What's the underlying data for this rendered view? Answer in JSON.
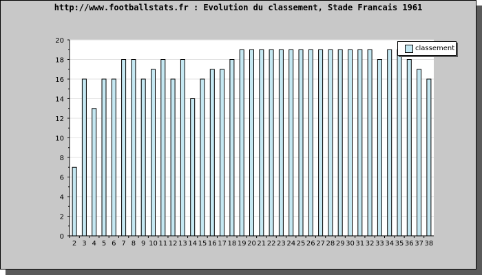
{
  "chart_data": {
    "type": "bar",
    "title": "http://www.footballstats.fr : Evolution du classement, Stade Francais 1961",
    "xlabel": "",
    "ylabel": "",
    "categories": [
      "2",
      "3",
      "4",
      "5",
      "6",
      "7",
      "8",
      "9",
      "10",
      "11",
      "12",
      "13",
      "14",
      "15",
      "16",
      "17",
      "18",
      "19",
      "20",
      "21",
      "22",
      "23",
      "24",
      "25",
      "26",
      "27",
      "28",
      "29",
      "30",
      "31",
      "32",
      "33",
      "34",
      "35",
      "36",
      "37",
      "38"
    ],
    "series": [
      {
        "name": "classement",
        "values": [
          7,
          16,
          13,
          16,
          16,
          18,
          18,
          16,
          17,
          18,
          16,
          18,
          14,
          16,
          17,
          17,
          18,
          19,
          19,
          19,
          19,
          19,
          19,
          19,
          19,
          19,
          19,
          19,
          19,
          19,
          19,
          18,
          19,
          19,
          18,
          17,
          16
        ]
      }
    ],
    "ylim": [
      0,
      20
    ],
    "yticks": [
      0,
      2,
      4,
      6,
      8,
      10,
      12,
      14,
      16,
      18,
      20
    ],
    "grid": true,
    "legend_position": "top-right",
    "colors": {
      "bar_fill": "#c5e8f2",
      "bar_stroke": "#000000",
      "frame_bg": "#c8c8c8",
      "plot_bg": "#ffffff",
      "grid": "#e2e2e2",
      "shadow": "#5a5a5a"
    }
  }
}
